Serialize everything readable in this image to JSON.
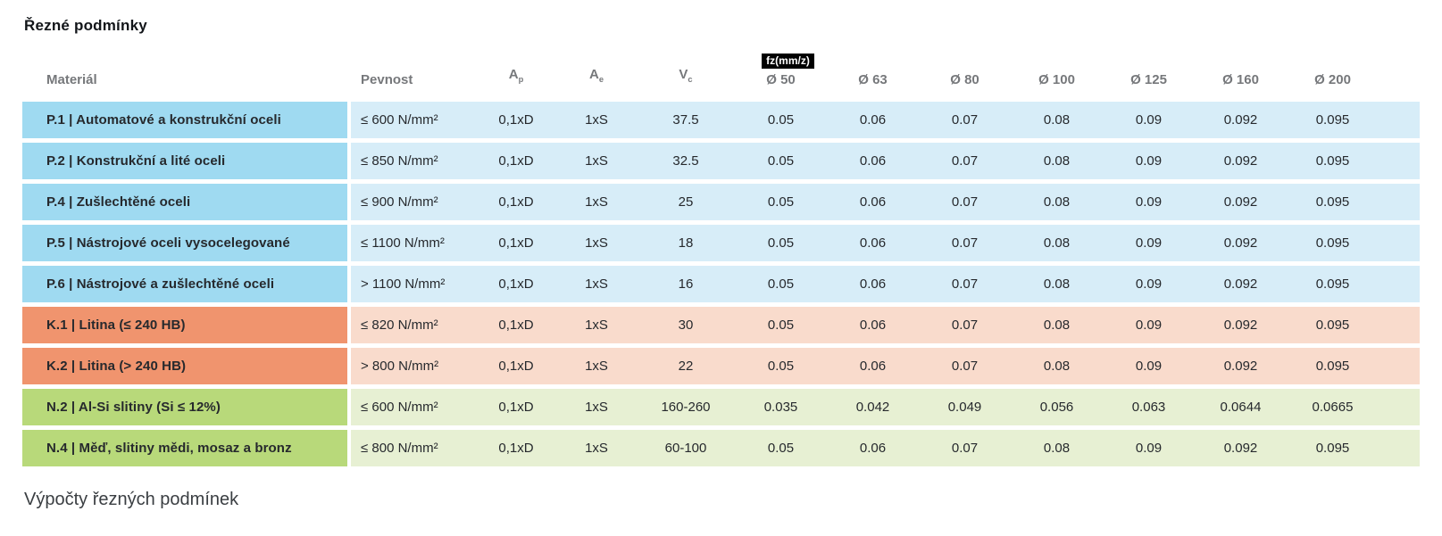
{
  "page": {
    "title": "Řezné podmínky",
    "section_heading": "Výpočty řezných podmínek"
  },
  "table": {
    "headers": {
      "material": "Materiál",
      "strength": "Pevnost",
      "ap": {
        "base": "A",
        "sub": "p"
      },
      "ae": {
        "base": "A",
        "sub": "e"
      },
      "vc": {
        "base": "V",
        "sub": "c"
      },
      "fz_badge": "fz(mm/z)",
      "diameters": [
        "Ø 50",
        "Ø 63",
        "Ø 80",
        "Ø 100",
        "Ø 125",
        "Ø 160",
        "Ø 200"
      ]
    },
    "rows": [
      {
        "group": "P",
        "material": "P.1 | Automatové a konstrukční oceli",
        "strength": "≤ 600 N/mm²",
        "ap": "0,1xD",
        "ae": "1xS",
        "vc": "37.5",
        "fz": [
          "0.05",
          "0.06",
          "0.07",
          "0.08",
          "0.09",
          "0.092",
          "0.095"
        ]
      },
      {
        "group": "P",
        "material": "P.2 | Konstrukční a lité oceli",
        "strength": "≤ 850 N/mm²",
        "ap": "0,1xD",
        "ae": "1xS",
        "vc": "32.5",
        "fz": [
          "0.05",
          "0.06",
          "0.07",
          "0.08",
          "0.09",
          "0.092",
          "0.095"
        ]
      },
      {
        "group": "P",
        "material": "P.4 | Zušlechtěné oceli",
        "strength": "≤ 900 N/mm²",
        "ap": "0,1xD",
        "ae": "1xS",
        "vc": "25",
        "fz": [
          "0.05",
          "0.06",
          "0.07",
          "0.08",
          "0.09",
          "0.092",
          "0.095"
        ]
      },
      {
        "group": "P",
        "material": "P.5 | Nástrojové oceli vysocelegované",
        "strength": "≤ 1100 N/mm²",
        "ap": "0,1xD",
        "ae": "1xS",
        "vc": "18",
        "fz": [
          "0.05",
          "0.06",
          "0.07",
          "0.08",
          "0.09",
          "0.092",
          "0.095"
        ]
      },
      {
        "group": "P",
        "material": "P.6 | Nástrojové a zušlechtěné oceli",
        "strength": "> 1100 N/mm²",
        "ap": "0,1xD",
        "ae": "1xS",
        "vc": "16",
        "fz": [
          "0.05",
          "0.06",
          "0.07",
          "0.08",
          "0.09",
          "0.092",
          "0.095"
        ]
      },
      {
        "group": "K",
        "material": "K.1 | Litina (≤ 240 HB)",
        "strength": "≤ 820 N/mm²",
        "ap": "0,1xD",
        "ae": "1xS",
        "vc": "30",
        "fz": [
          "0.05",
          "0.06",
          "0.07",
          "0.08",
          "0.09",
          "0.092",
          "0.095"
        ]
      },
      {
        "group": "K",
        "material": "K.2 | Litina (> 240 HB)",
        "strength": "> 800 N/mm²",
        "ap": "0,1xD",
        "ae": "1xS",
        "vc": "22",
        "fz": [
          "0.05",
          "0.06",
          "0.07",
          "0.08",
          "0.09",
          "0.092",
          "0.095"
        ]
      },
      {
        "group": "N",
        "material": "N.2 | Al-Si slitiny (Si ≤ 12%)",
        "strength": "≤ 600 N/mm²",
        "ap": "0,1xD",
        "ae": "1xS",
        "vc": "160-260",
        "fz": [
          "0.035",
          "0.042",
          "0.049",
          "0.056",
          "0.063",
          "0.0644",
          "0.0665"
        ]
      },
      {
        "group": "N",
        "material": "N.4 | Měď, slitiny mědi, mosaz a bronz",
        "strength": "≤ 800 N/mm²",
        "ap": "0,1xD",
        "ae": "1xS",
        "vc": "60-100",
        "fz": [
          "0.05",
          "0.06",
          "0.07",
          "0.08",
          "0.09",
          "0.092",
          "0.095"
        ]
      }
    ]
  },
  "colors": {
    "group-p-label": "#9fdaf1",
    "group-p-row": "#d7edf8",
    "group-k-label": "#f0946e",
    "group-k-row": "#f9dbcc",
    "group-n-label": "#b8d97a",
    "group-n-row": "#e7f0d3",
    "badge-bg": "#000000",
    "badge-text": "#ffffff"
  }
}
